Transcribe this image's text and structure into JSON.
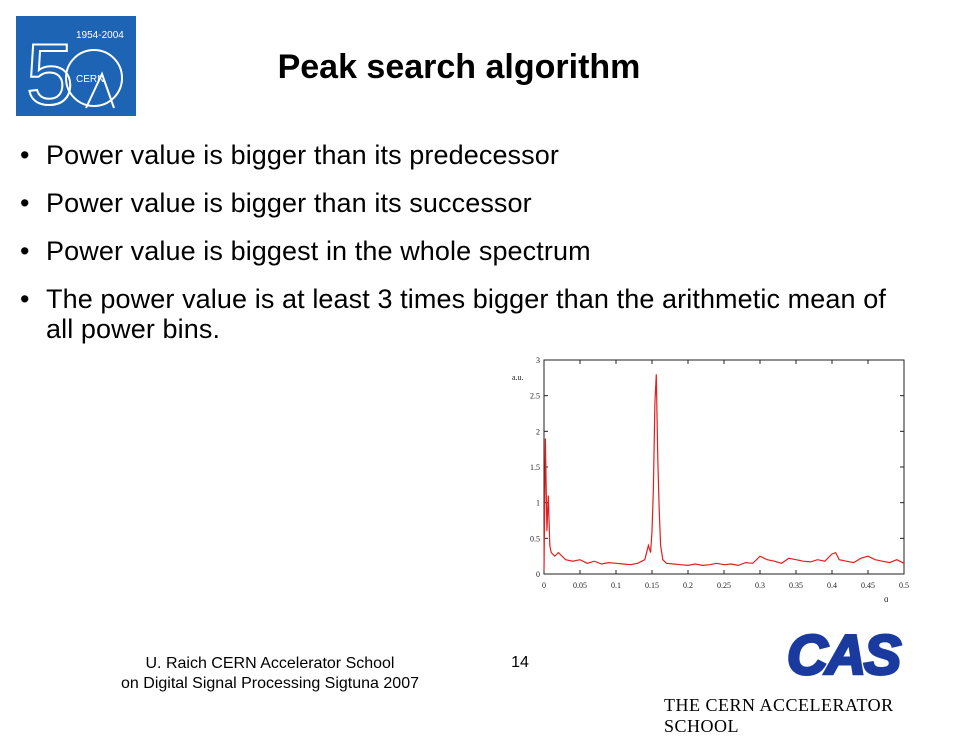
{
  "header": {
    "title": "Peak search algorithm",
    "logo": {
      "icon": "cern-50-years-logo",
      "years": "1954-2004",
      "org": "CERN",
      "colors": {
        "background": "#1e64b4",
        "foreground": "#ffffff"
      }
    }
  },
  "bullets": [
    "Power value is bigger than its predecessor",
    "Power value is bigger than its successor",
    "Power value is biggest in the whole spectrum",
    "The power value is at least 3 times bigger than the arithmetic mean of all power bins."
  ],
  "chart_data": {
    "type": "line",
    "xlabel": "q",
    "ylabel": "a.u.",
    "xlim": [
      0,
      0.5
    ],
    "ylim": [
      0,
      3
    ],
    "x_ticks": [
      "0",
      "0.05",
      "0.1",
      "0.15",
      "0.2",
      "0.25",
      "0.3",
      "0.35",
      "0.4",
      "0.45",
      "0.5"
    ],
    "y_ticks": [
      "0",
      "0.5",
      "1",
      "1.5",
      "2",
      "2.5",
      "3"
    ],
    "grid": false,
    "series_color": "#e02020",
    "series": [
      {
        "x": [
          0,
          0.002,
          0.004,
          0.006,
          0.008,
          0.01,
          0.015,
          0.02,
          0.03,
          0.04,
          0.05,
          0.06,
          0.07,
          0.08,
          0.09,
          0.1,
          0.11,
          0.12,
          0.13,
          0.14,
          0.145,
          0.148,
          0.15,
          0.152,
          0.154,
          0.156,
          0.158,
          0.16,
          0.162,
          0.165,
          0.17,
          0.18,
          0.19,
          0.2,
          0.21,
          0.22,
          0.23,
          0.24,
          0.25,
          0.26,
          0.27,
          0.28,
          0.29,
          0.3,
          0.31,
          0.32,
          0.33,
          0.34,
          0.35,
          0.36,
          0.37,
          0.38,
          0.39,
          0.4,
          0.405,
          0.41,
          0.42,
          0.43,
          0.44,
          0.45,
          0.46,
          0.47,
          0.48,
          0.49,
          0.5
        ],
        "y": [
          0.05,
          1.9,
          0.6,
          1.1,
          0.4,
          0.3,
          0.25,
          0.3,
          0.2,
          0.18,
          0.2,
          0.15,
          0.18,
          0.14,
          0.16,
          0.15,
          0.14,
          0.13,
          0.15,
          0.2,
          0.4,
          0.3,
          0.6,
          1.2,
          2.4,
          2.8,
          1.6,
          0.9,
          0.4,
          0.2,
          0.15,
          0.14,
          0.13,
          0.12,
          0.14,
          0.12,
          0.13,
          0.15,
          0.13,
          0.14,
          0.12,
          0.16,
          0.15,
          0.25,
          0.2,
          0.18,
          0.15,
          0.22,
          0.2,
          0.18,
          0.17,
          0.2,
          0.18,
          0.28,
          0.3,
          0.2,
          0.18,
          0.16,
          0.22,
          0.25,
          0.2,
          0.18,
          0.16,
          0.2,
          0.15
        ]
      }
    ]
  },
  "footer": {
    "author_line1": "U. Raich  CERN Accelerator School",
    "author_line2": "on Digital Signal Processing  Sigtuna 2007",
    "page_number": "14",
    "cas_logo_text": "CAS",
    "cas_name": "THE CERN ACCELERATOR SCHOOL",
    "cas_color": "#1a3aa0"
  }
}
